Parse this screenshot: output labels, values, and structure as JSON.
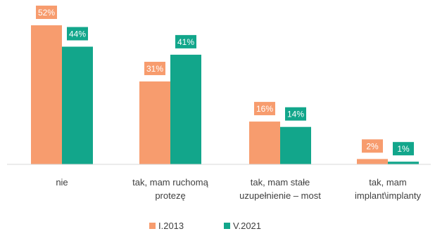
{
  "chart_data": {
    "type": "bar",
    "categories": [
      [
        "nie"
      ],
      [
        "tak, mam ruchomą",
        "protezę"
      ],
      [
        "tak, mam stałe",
        "uzupełnienie – most"
      ],
      [
        "tak, mam",
        "implant\\implanty"
      ]
    ],
    "series": [
      {
        "name": "I.2013",
        "values": [
          52,
          31,
          16,
          2
        ],
        "labels": [
          "52%",
          "31%",
          "16%",
          "2%"
        ],
        "color": "#F79C6E"
      },
      {
        "name": "V.2021",
        "values": [
          44,
          41,
          14,
          1
        ],
        "labels": [
          "44%",
          "41%",
          "14%",
          "1%"
        ],
        "color": "#12A68B"
      }
    ],
    "ylim": [
      0,
      55
    ],
    "legend": "bottom",
    "grid": false,
    "title": "",
    "xlabel": "",
    "ylabel": ""
  }
}
